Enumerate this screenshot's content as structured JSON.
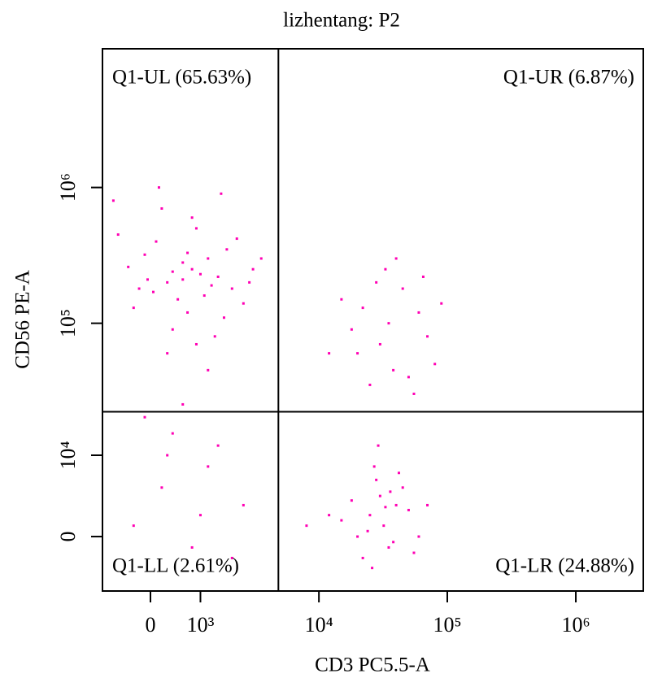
{
  "chart_data": {
    "type": "scatter",
    "title": "lizhentang: P2",
    "x_label": "CD3 PC5.5-A",
    "y_label": "CD56 PE-A",
    "xscale": "biexponential",
    "yscale": "biexponential",
    "xlim": [
      -950,
      3350000
    ],
    "ylim": [
      -5700,
      10500000
    ],
    "xticks": [
      0,
      {
        "value": 1000,
        "label": "10³"
      },
      {
        "value": 10000,
        "label": "10⁴"
      },
      {
        "value": 100000,
        "label": "10⁵"
      },
      {
        "value": 1000000,
        "label": "10⁶"
      }
    ],
    "yticks": [
      0,
      {
        "value": 10000,
        "label": "10⁴"
      },
      {
        "value": 100000,
        "label": "10⁵"
      },
      {
        "value": 1000000,
        "label": "10⁶"
      }
    ],
    "gates": {
      "x": 4800,
      "y": 22000
    },
    "quadrants": [
      {
        "label": "Q1-UL (65.63%)",
        "color": "#3cb043"
      },
      {
        "label": "Q1-UR (6.87%)",
        "color": "#7a6510"
      },
      {
        "label": "Q1-LL (2.61%)",
        "color": "#1e90d0"
      },
      {
        "label": "Q1-LR (24.88%)",
        "color": "#f08020"
      }
    ],
    "color": "#ff00b4",
    "x": [
      300,
      800,
      -200,
      1200,
      500,
      1500,
      100,
      700,
      2000,
      -400,
      900,
      400,
      1800,
      600,
      1100,
      -100,
      2500,
      200,
      1400,
      800,
      -600,
      3000,
      50,
      1700,
      1000,
      300,
      2200,
      -300,
      600,
      1300,
      3500,
      -700,
      1600,
      400,
      900,
      2800,
      150,
      1200,
      700,
      -50,
      200,
      1500,
      -100,
      800,
      2500,
      400,
      1200,
      -300,
      2000,
      600,
      1000,
      300,
      20000,
      35000,
      50000,
      28000,
      70000,
      15000,
      40000,
      25000,
      60000,
      30000,
      45000,
      18000,
      80000,
      33000,
      55000,
      22000,
      38000,
      65000,
      12000,
      90000,
      25000,
      30000,
      20000,
      40000,
      35000,
      28000,
      15000,
      50000,
      22000,
      45000,
      32000,
      18000,
      60000,
      27000,
      38000,
      12000,
      70000,
      24000,
      42000,
      33000,
      55000,
      29000,
      8000,
      36000,
      26000
    ],
    "values": [
      200000,
      250000,
      180000,
      300000,
      150000,
      220000,
      400000,
      120000,
      180000,
      260000,
      500000,
      90000,
      350000,
      210000,
      160000,
      320000,
      140000,
      700000,
      80000,
      600000,
      450000,
      250000,
      170000,
      110000,
      230000,
      60000,
      420000,
      130000,
      280000,
      190000,
      300000,
      800000,
      900000,
      240000,
      70000,
      200000,
      1000000,
      45000,
      330000,
      210000,
      5000,
      12000,
      20000,
      -1000,
      3000,
      15000,
      8000,
      1000,
      -2000,
      25000,
      2000,
      10000,
      60000,
      100000,
      40000,
      200000,
      80000,
      150000,
      300000,
      35000,
      120000,
      70000,
      180000,
      90000,
      50000,
      250000,
      30000,
      130000,
      45000,
      220000,
      60000,
      140000,
      2000,
      4000,
      0,
      3000,
      -1000,
      6000,
      1500,
      2500,
      -2000,
      5000,
      1000,
      3500,
      0,
      8000,
      -500,
      2000,
      3000,
      500,
      7000,
      2800,
      -1500,
      12000,
      1000,
      4500,
      -3000
    ]
  }
}
